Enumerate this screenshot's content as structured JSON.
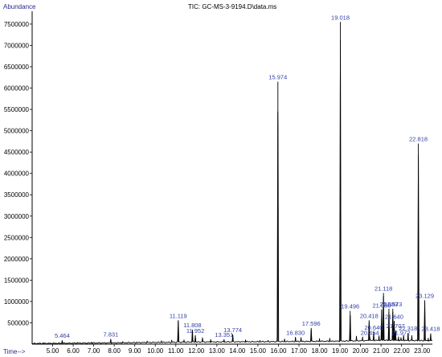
{
  "chart_data": {
    "type": "line",
    "title": "TIC: GC-MS-3-9194.D\\data.ms",
    "ylabel": "Abundance",
    "xlabel": "Time-->",
    "xlim": [
      4.0,
      23.5
    ],
    "ylim": [
      0,
      7800000
    ],
    "x_ticks": [
      5.0,
      6.0,
      7.0,
      8.0,
      9.0,
      10.0,
      11.0,
      12.0,
      13.0,
      14.0,
      15.0,
      16.0,
      17.0,
      18.0,
      19.0,
      20.0,
      21.0,
      22.0,
      23.0
    ],
    "x_tick_labels": [
      "5.00",
      "6.00",
      "7.00",
      "8.00",
      "9.00",
      "10.00",
      "11.00",
      "12.00",
      "13.00",
      "14.00",
      "15.00",
      "16.00",
      "17.00",
      "18.00",
      "19.00",
      "20.00",
      "21.00",
      "22.00",
      "23.00"
    ],
    "y_ticks": [
      500000,
      1000000,
      1500000,
      2000000,
      2500000,
      3000000,
      3500000,
      4000000,
      4500000,
      5000000,
      5500000,
      6000000,
      6500000,
      7000000,
      7500000
    ],
    "y_tick_labels": [
      "500000",
      "1000000",
      "1500000",
      "2000000",
      "2500000",
      "3000000",
      "3500000",
      "4000000",
      "4500000",
      "5000000",
      "5500000",
      "6000000",
      "6500000",
      "7000000",
      "7500000"
    ],
    "grid": false,
    "line_color": "#000000",
    "label_color": "#2f3fa8",
    "peaks": [
      {
        "x": 5.464,
        "y": 90000,
        "label": "5.464"
      },
      {
        "x": 7.831,
        "y": 120000,
        "label": "7.831"
      },
      {
        "x": 11.119,
        "y": 560000,
        "label": "11.119"
      },
      {
        "x": 11.808,
        "y": 340000,
        "label": "11.808"
      },
      {
        "x": 11.952,
        "y": 210000,
        "label": "11.952"
      },
      {
        "x": 13.351,
        "y": 110000,
        "label": "13.351"
      },
      {
        "x": 13.774,
        "y": 230000,
        "label": "13.774"
      },
      {
        "x": 15.974,
        "y": 6150000,
        "label": "15.974"
      },
      {
        "x": 16.83,
        "y": 160000,
        "label": "16.830"
      },
      {
        "x": 17.596,
        "y": 380000,
        "label": "17.596"
      },
      {
        "x": 19.018,
        "y": 7550000,
        "label": "19.018"
      },
      {
        "x": 19.496,
        "y": 780000,
        "label": "19.496"
      },
      {
        "x": 20.418,
        "y": 560000,
        "label": "20.418"
      },
      {
        "x": 20.454,
        "y": 160000,
        "label": "20.454"
      },
      {
        "x": 20.64,
        "y": 280000,
        "label": "20.640"
      },
      {
        "x": 21.03,
        "y": 800000,
        "label": "21.030"
      },
      {
        "x": 21.118,
        "y": 1200000,
        "label": "21.118"
      },
      {
        "x": 21.383,
        "y": 830000,
        "label": "21.383"
      },
      {
        "x": 21.573,
        "y": 830000,
        "label": "21.573"
      },
      {
        "x": 21.64,
        "y": 540000,
        "label": "21.640"
      },
      {
        "x": 21.707,
        "y": 320000,
        "label": "21.707"
      },
      {
        "x": 21.972,
        "y": 160000,
        "label": "21.972"
      },
      {
        "x": 22.318,
        "y": 260000,
        "label": "22.318"
      },
      {
        "x": 22.818,
        "y": 4700000,
        "label": "22.818"
      },
      {
        "x": 23.129,
        "y": 1030000,
        "label": "23.129"
      },
      {
        "x": 23.418,
        "y": 250000,
        "label": "23.418"
      }
    ],
    "minor_peaks": [
      {
        "x": 4.55,
        "y": 30000
      },
      {
        "x": 6.2,
        "y": 40000
      },
      {
        "x": 6.9,
        "y": 50000
      },
      {
        "x": 8.4,
        "y": 60000
      },
      {
        "x": 9.1,
        "y": 50000
      },
      {
        "x": 9.6,
        "y": 70000
      },
      {
        "x": 10.3,
        "y": 80000
      },
      {
        "x": 10.8,
        "y": 90000
      },
      {
        "x": 11.4,
        "y": 100000
      },
      {
        "x": 12.3,
        "y": 150000
      },
      {
        "x": 12.7,
        "y": 120000
      },
      {
        "x": 14.4,
        "y": 110000
      },
      {
        "x": 15.1,
        "y": 90000
      },
      {
        "x": 15.5,
        "y": 80000
      },
      {
        "x": 16.3,
        "y": 120000
      },
      {
        "x": 17.1,
        "y": 150000
      },
      {
        "x": 18.0,
        "y": 130000
      },
      {
        "x": 18.5,
        "y": 140000
      },
      {
        "x": 19.8,
        "y": 180000
      },
      {
        "x": 20.1,
        "y": 160000
      },
      {
        "x": 20.9,
        "y": 200000
      },
      {
        "x": 21.85,
        "y": 180000
      },
      {
        "x": 22.1,
        "y": 220000
      },
      {
        "x": 22.5,
        "y": 200000
      },
      {
        "x": 23.3,
        "y": 150000
      }
    ],
    "baseline": [
      {
        "x": 4.0,
        "y": 15000
      },
      {
        "x": 8.0,
        "y": 30000
      },
      {
        "x": 12.0,
        "y": 50000
      },
      {
        "x": 16.0,
        "y": 60000
      },
      {
        "x": 19.0,
        "y": 70000
      },
      {
        "x": 21.0,
        "y": 90000
      },
      {
        "x": 23.5,
        "y": 80000
      }
    ]
  }
}
